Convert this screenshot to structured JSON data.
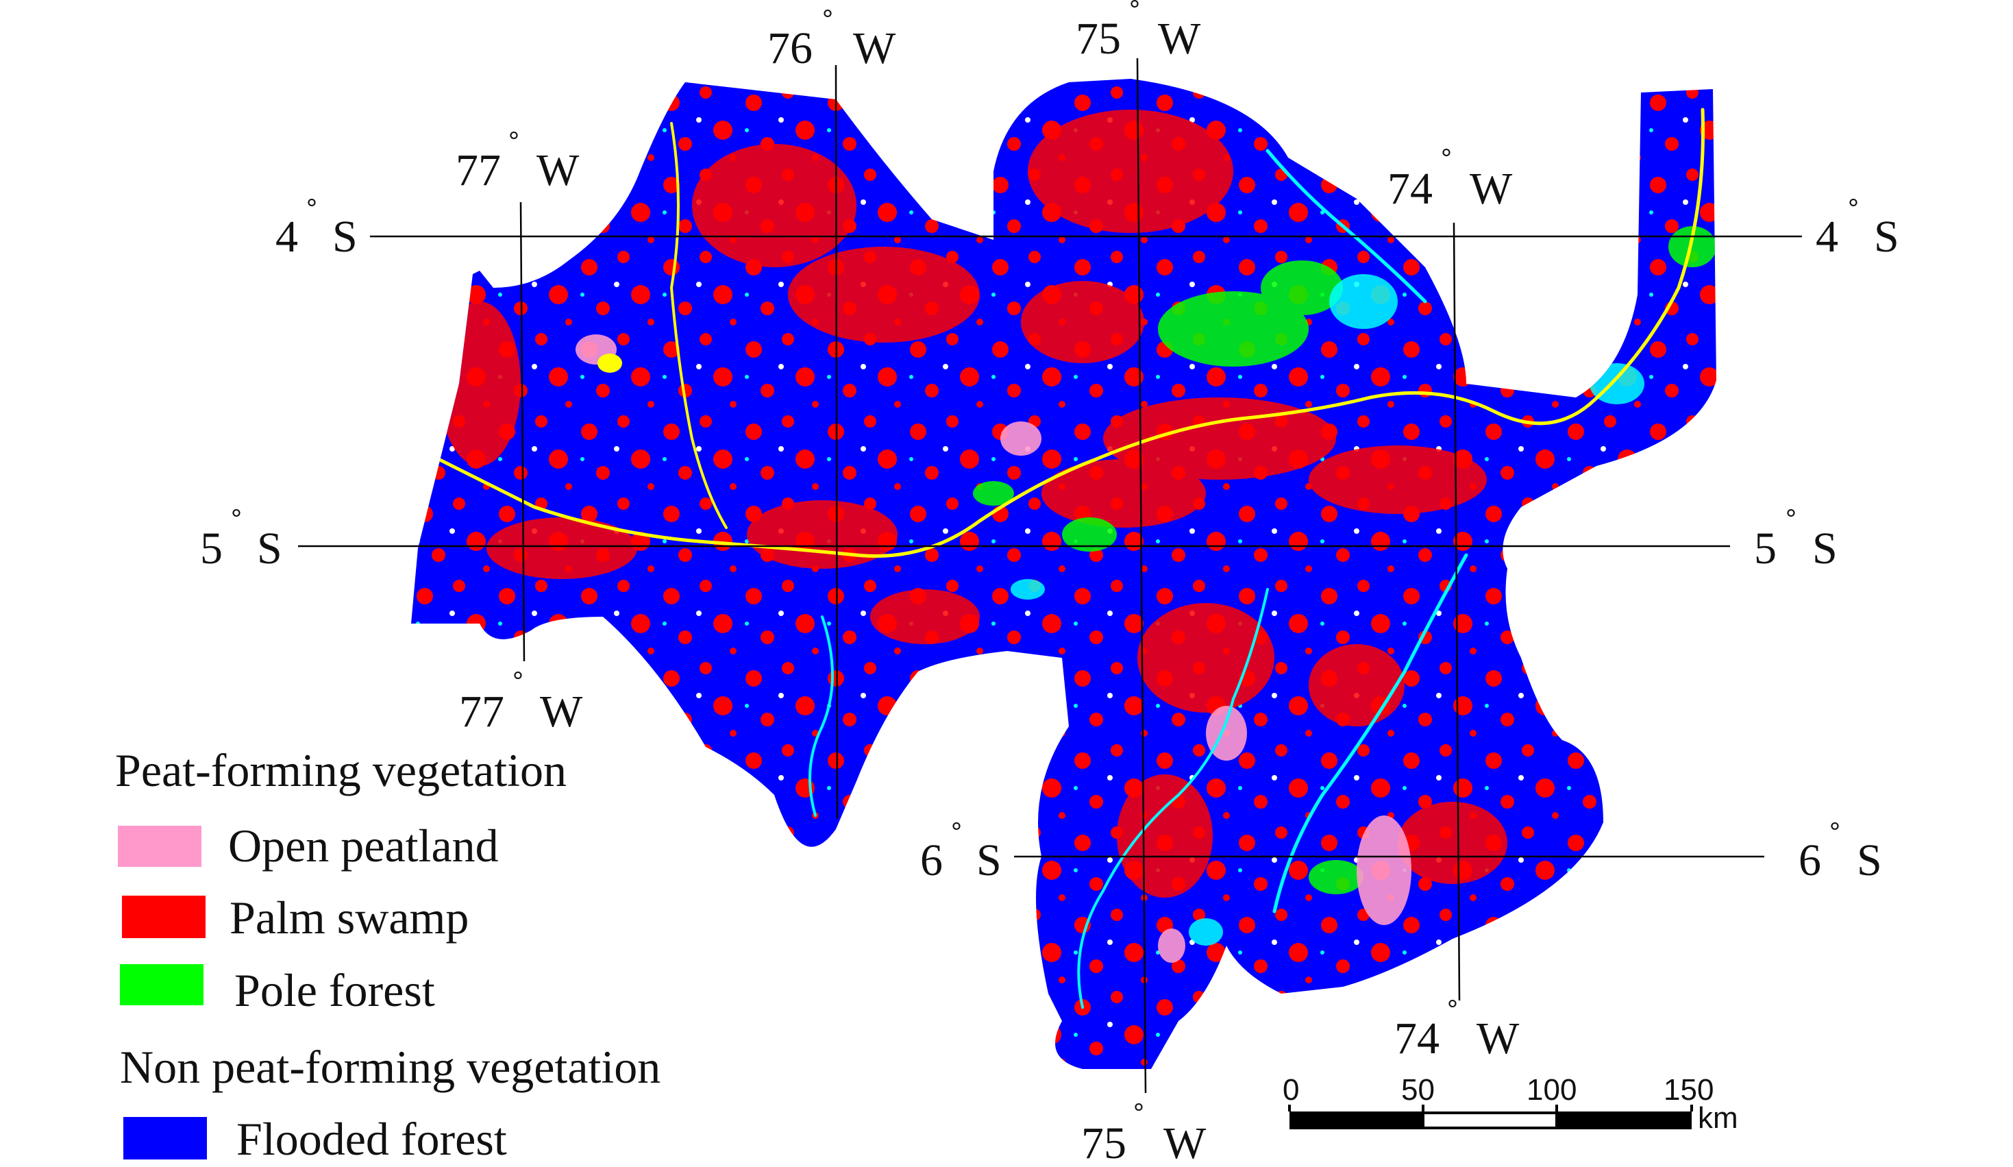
{
  "map": {
    "colors": {
      "flooded_forest": "#0000ff",
      "palm_swamp": "#ff0000",
      "pole_forest": "#00ff00",
      "open_peatland": "#ff99cc",
      "rivers_water": "#00ffff",
      "river_sediment": "#ffff00"
    },
    "graticule_labels": {
      "lon_76_top": "76",
      "lon_75_top": "75",
      "lon_77_top": "77",
      "lon_74_top": "74",
      "lon_77_bottom": "77",
      "lon_75_bottom": "75",
      "lon_74_bottom": "74",
      "lat_4_left": "4",
      "lat_4_right": "4",
      "lat_5_left": "5",
      "lat_5_right": "5",
      "lat_6_left": "6",
      "lat_6_right": "6",
      "west": "W",
      "south": "S",
      "degree": "°"
    }
  },
  "legend": {
    "group_peat": "Peat-forming vegetation",
    "open_peatland": "Open peatland",
    "palm_swamp": "Palm swamp",
    "pole_forest": "Pole forest",
    "group_non_peat": "Non peat-forming vegetation",
    "flooded_forest": "Flooded forest"
  },
  "scale_bar": {
    "ticks": [
      "0",
      "50",
      "100",
      "150"
    ],
    "unit": "km"
  }
}
